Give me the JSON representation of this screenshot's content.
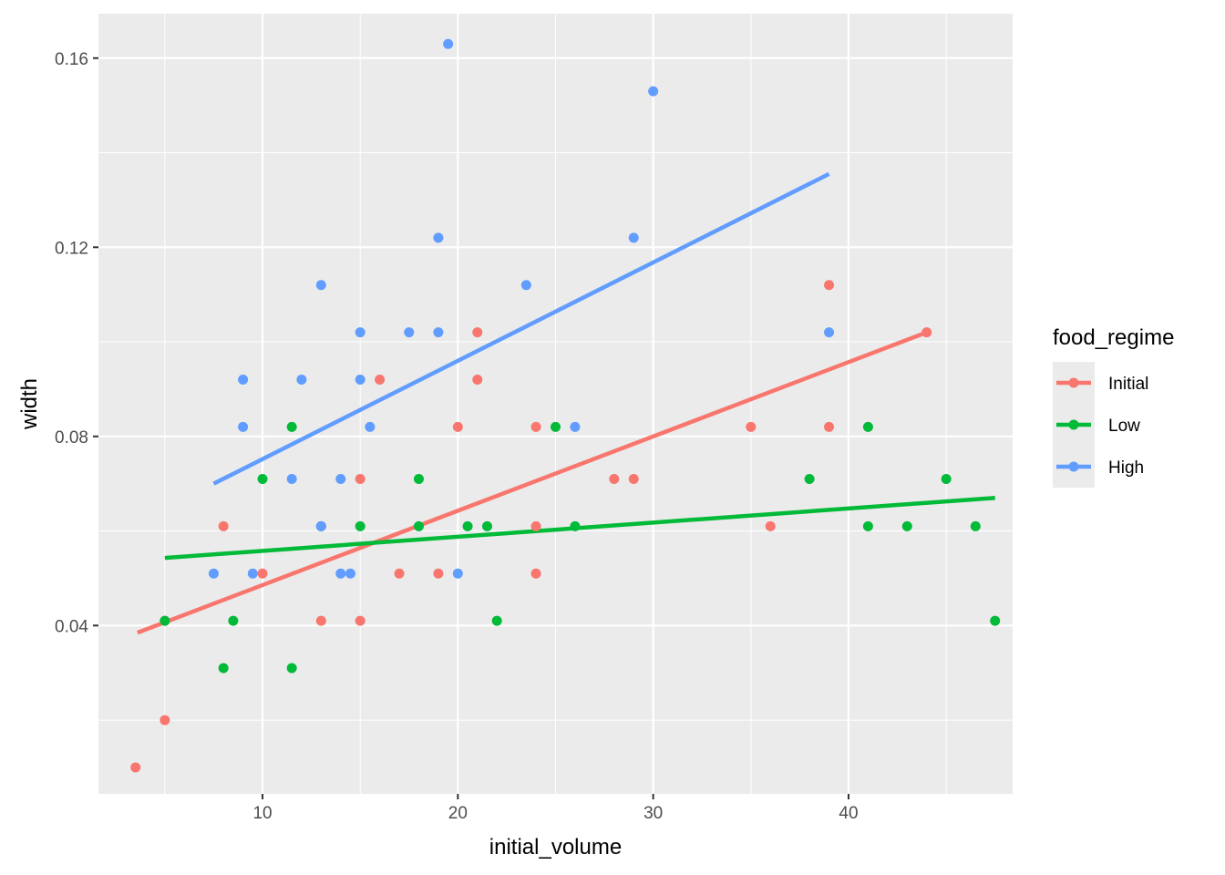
{
  "chart_data": {
    "type": "scatter",
    "xlabel": "initial_volume",
    "ylabel": "width",
    "xlim": [
      1.6,
      48.4
    ],
    "ylim": [
      0.0044,
      0.1694
    ],
    "x_ticks": [
      10,
      20,
      30,
      40
    ],
    "y_ticks": [
      0.04,
      0.08,
      0.12,
      0.16
    ],
    "x_tick_labels": [
      "10",
      "20",
      "30",
      "40"
    ],
    "y_tick_labels": [
      "0.04",
      "0.08",
      "0.12",
      "0.16"
    ],
    "grid": true,
    "legend": {
      "title": "food_regime",
      "placement": "right"
    },
    "series": [
      {
        "name": "Initial",
        "color": "#F8766D",
        "points": [
          [
            3.5,
            0.01
          ],
          [
            5,
            0.02
          ],
          [
            5,
            0.041
          ],
          [
            8,
            0.061
          ],
          [
            10,
            0.051
          ],
          [
            13,
            0.041
          ],
          [
            13,
            0.061
          ],
          [
            15,
            0.041
          ],
          [
            15,
            0.071
          ],
          [
            16,
            0.092
          ],
          [
            17,
            0.051
          ],
          [
            19,
            0.051
          ],
          [
            20,
            0.082
          ],
          [
            21,
            0.092
          ],
          [
            21,
            0.102
          ],
          [
            24,
            0.051
          ],
          [
            24,
            0.061
          ],
          [
            24,
            0.082
          ],
          [
            28,
            0.071
          ],
          [
            29,
            0.071
          ],
          [
            35,
            0.082
          ],
          [
            36,
            0.061
          ],
          [
            39,
            0.082
          ],
          [
            39,
            0.112
          ],
          [
            44,
            0.102
          ]
        ],
        "fit": [
          [
            3.6,
            0.0385
          ],
          [
            44,
            0.102
          ]
        ]
      },
      {
        "name": "Low",
        "color": "#00BA38",
        "points": [
          [
            5,
            0.041
          ],
          [
            8,
            0.031
          ],
          [
            8.5,
            0.041
          ],
          [
            10,
            0.071
          ],
          [
            11.5,
            0.031
          ],
          [
            11.5,
            0.082
          ],
          [
            13,
            0.061
          ],
          [
            15,
            0.061
          ],
          [
            18,
            0.061
          ],
          [
            18,
            0.071
          ],
          [
            20.5,
            0.061
          ],
          [
            21.5,
            0.061
          ],
          [
            22,
            0.041
          ],
          [
            25,
            0.082
          ],
          [
            26,
            0.061
          ],
          [
            38,
            0.071
          ],
          [
            41,
            0.061
          ],
          [
            41,
            0.082
          ],
          [
            43,
            0.061
          ],
          [
            45,
            0.071
          ],
          [
            46.5,
            0.061
          ],
          [
            47.5,
            0.041
          ]
        ],
        "fit": [
          [
            5,
            0.0543
          ],
          [
            47.5,
            0.067
          ]
        ]
      },
      {
        "name": "High",
        "color": "#619CFF",
        "points": [
          [
            7.5,
            0.051
          ],
          [
            9,
            0.082
          ],
          [
            9,
            0.092
          ],
          [
            9.5,
            0.051
          ],
          [
            11.5,
            0.071
          ],
          [
            12,
            0.092
          ],
          [
            13,
            0.061
          ],
          [
            13,
            0.112
          ],
          [
            14,
            0.051
          ],
          [
            14,
            0.071
          ],
          [
            14.5,
            0.051
          ],
          [
            15,
            0.092
          ],
          [
            15,
            0.102
          ],
          [
            15.5,
            0.082
          ],
          [
            17.5,
            0.102
          ],
          [
            19,
            0.102
          ],
          [
            19,
            0.122
          ],
          [
            19.5,
            0.163
          ],
          [
            20,
            0.051
          ],
          [
            23.5,
            0.112
          ],
          [
            26,
            0.082
          ],
          [
            29,
            0.122
          ],
          [
            30,
            0.153
          ],
          [
            39,
            0.102
          ]
        ],
        "fit": [
          [
            7.5,
            0.07
          ],
          [
            39,
            0.1355
          ]
        ]
      }
    ]
  }
}
